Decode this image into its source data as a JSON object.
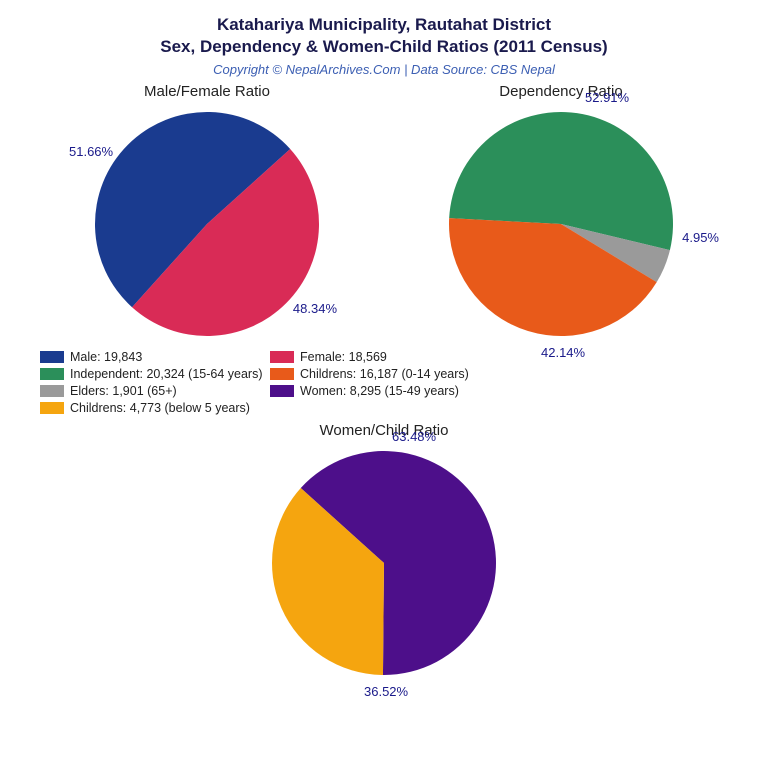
{
  "header": {
    "title_line1": "Katahariya Municipality, Rautahat District",
    "title_line2": "Sex, Dependency & Women-Child Ratios (2011 Census)",
    "subtitle": "Copyright © NepalArchives.Com | Data Source: CBS Nepal",
    "title_color": "#1a1a4d",
    "subtitle_color": "#3c5fb3",
    "title_fontsize": 17,
    "subtitle_fontsize": 13
  },
  "colors": {
    "male": "#1a3b8f",
    "female": "#d92b56",
    "independent": "#2b8f5a",
    "children": "#e85a1a",
    "elders": "#9a9a9a",
    "women": "#4d0f8a",
    "children_u5": "#f5a50f",
    "label_text": "#1a1a8a",
    "background": "#ffffff"
  },
  "charts": {
    "sex": {
      "type": "pie",
      "title": "Male/Female Ratio",
      "slices": [
        {
          "label": "Male",
          "value": 51.66,
          "pct_text": "51.66%",
          "color": "#1a3b8f"
        },
        {
          "label": "Female",
          "value": 48.34,
          "pct_text": "48.34%",
          "color": "#d92b56"
        }
      ],
      "start_angle_deg": 132
    },
    "dependency": {
      "type": "pie",
      "title": "Dependency Ratio",
      "slices": [
        {
          "label": "Independent",
          "value": 52.91,
          "pct_text": "52.91%",
          "color": "#2b8f5a"
        },
        {
          "label": "Elders",
          "value": 4.95,
          "pct_text": "4.95%",
          "color": "#9a9a9a"
        },
        {
          "label": "Children",
          "value": 42.14,
          "pct_text": "42.14%",
          "color": "#e85a1a"
        }
      ],
      "start_angle_deg": 183
    },
    "women_child": {
      "type": "pie",
      "title": "Women/Child Ratio",
      "slices": [
        {
          "label": "Women",
          "value": 63.48,
          "pct_text": "63.48%",
          "color": "#4d0f8a"
        },
        {
          "label": "Children U5",
          "value": 36.52,
          "pct_text": "36.52%",
          "color": "#f5a50f"
        }
      ],
      "start_angle_deg": 222
    }
  },
  "legend": [
    {
      "swatch": "#1a3b8f",
      "text": "Male: 19,843"
    },
    {
      "swatch": "#d92b56",
      "text": "Female: 18,569"
    },
    {
      "swatch": "#2b8f5a",
      "text": "Independent: 20,324 (15-64 years)"
    },
    {
      "swatch": "#e85a1a",
      "text": "Childrens: 16,187 (0-14 years)"
    },
    {
      "swatch": "#9a9a9a",
      "text": "Elders: 1,901 (65+)"
    },
    {
      "swatch": "#4d0f8a",
      "text": "Women: 8,295 (15-49 years)"
    },
    {
      "swatch": "#f5a50f",
      "text": "Childrens: 4,773 (below 5 years)"
    }
  ]
}
